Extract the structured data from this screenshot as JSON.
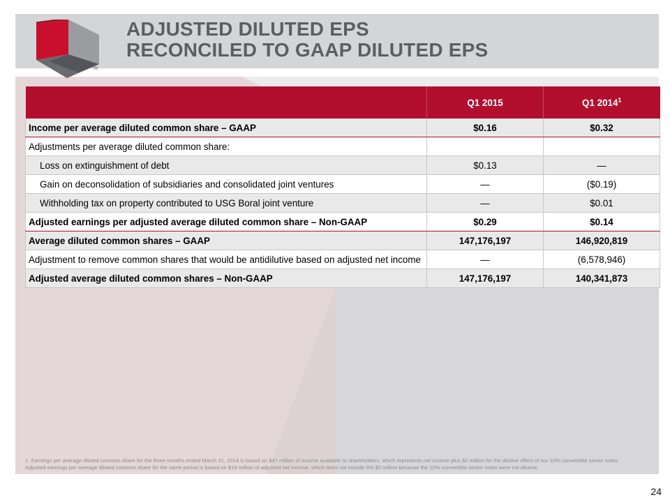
{
  "header": {
    "title_line1": "ADJUSTED DILUTED EPS",
    "title_line2": "RECONCILED TO GAAP DILUTED EPS",
    "logo_mark": "TM"
  },
  "table": {
    "columns": [
      "",
      "Q1 2015",
      "Q1 2014"
    ],
    "column_footnote": "1",
    "rows": [
      {
        "label": "Income per average diluted common share – GAAP",
        "q1_2015": "$0.16",
        "q1_2014": "$0.32"
      },
      {
        "label": "Adjustments per average diluted common share:",
        "q1_2015": "",
        "q1_2014": ""
      },
      {
        "label": "Loss on extinguishment of debt",
        "q1_2015": "$0.13",
        "q1_2014": "—"
      },
      {
        "label": "Gain on deconsolidation of subsidiaries and consolidated joint ventures",
        "q1_2015": "—",
        "q1_2014": "($0.19)"
      },
      {
        "label": "Withholding tax on property contributed to USG Boral joint venture",
        "q1_2015": "—",
        "q1_2014": "$0.01"
      },
      {
        "label": "Adjusted earnings per adjusted average diluted common share – Non-GAAP",
        "q1_2015": "$0.29",
        "q1_2014": "$0.14"
      },
      {
        "label": "Average diluted common shares – GAAP",
        "q1_2015": "147,176,197",
        "q1_2014": "146,920,819"
      },
      {
        "label": "Adjustment to remove common shares that would be antidilutive based on adjusted net income",
        "q1_2015": "—",
        "q1_2014": "(6,578,946)"
      },
      {
        "label": "Adjusted average diluted common shares – Non-GAAP",
        "q1_2015": "147,176,197",
        "q1_2014": "140,341,873"
      }
    ]
  },
  "footnote": "1. Earnings per average diluted common share for the three months ended March 31, 2014 is based on $47 million of income available to shareholders, which represents net income plus $2 million for the dilutive effect of our 10% convertible senior notes.  Adjusted earnings per average diluted common share for the same period is based on $19 million of adjusted net income, which does not include the $2 million because the 10% convertible senior notes were not dilutive.",
  "page_number": "24",
  "colors": {
    "brand_red": "#b20f2f",
    "title_gray": "#5d5e62",
    "title_bar": "#d4d5d7"
  }
}
